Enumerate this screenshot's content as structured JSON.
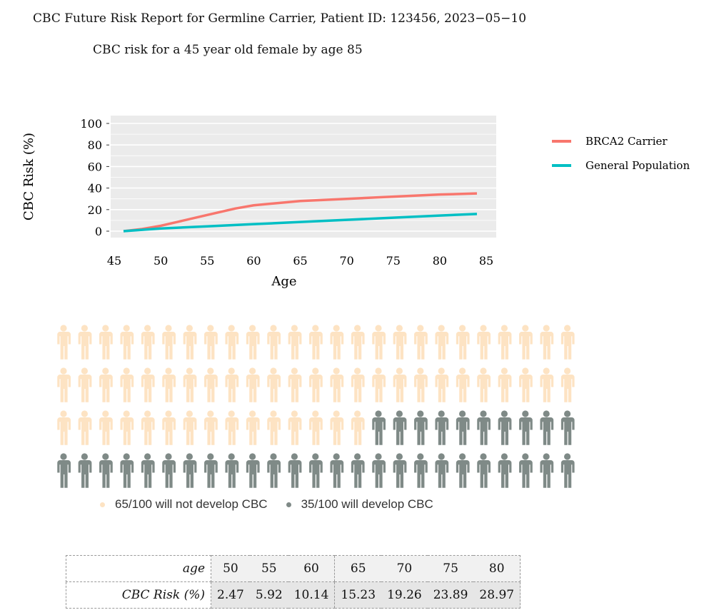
{
  "title": "CBC Future Risk Report for Germline Carrier, Patient ID: 123456, 2023−05−10",
  "subtitle": "CBC risk for a 45 year old female by age 85",
  "chart_data": {
    "type": "line",
    "xlabel": "Age",
    "ylabel": "CBC Risk (%)",
    "xlim": [
      45,
      85
    ],
    "ylim": [
      0,
      100
    ],
    "xticks": [
      45,
      50,
      55,
      60,
      65,
      70,
      75,
      80,
      85
    ],
    "yticks": [
      0,
      20,
      40,
      60,
      80,
      100
    ],
    "grid": true,
    "legend_placement": "right",
    "series": [
      {
        "name": "BRCA2 Carrier",
        "color": "#f8766d",
        "x": [
          46,
          48,
          50,
          52,
          55,
          58,
          60,
          65,
          70,
          75,
          80,
          84
        ],
        "y": [
          0,
          2,
          5,
          9,
          15,
          21,
          24,
          28,
          30,
          32,
          34,
          35
        ]
      },
      {
        "name": "General Population",
        "color": "#00bfc4",
        "x": [
          46,
          50,
          55,
          60,
          65,
          70,
          75,
          80,
          84
        ],
        "y": [
          0,
          2.5,
          4.5,
          6.5,
          8.5,
          10.5,
          12.5,
          14.5,
          16
        ]
      }
    ]
  },
  "people": {
    "total": 100,
    "develop": 35,
    "not_develop_color": "#fde3c3",
    "develop_color": "#7f8a87",
    "legend_not": "65/100 will not develop CBC",
    "legend_yes": "35/100 will develop CBC"
  },
  "table": {
    "row_labels": [
      "age",
      "CBC Risk (%)"
    ],
    "ages": [
      "50",
      "55",
      "60",
      "65",
      "70",
      "75",
      "80"
    ],
    "risks": [
      "2.47",
      "5.92",
      "10.14",
      "15.23",
      "19.26",
      "23.89",
      "28.97"
    ]
  }
}
